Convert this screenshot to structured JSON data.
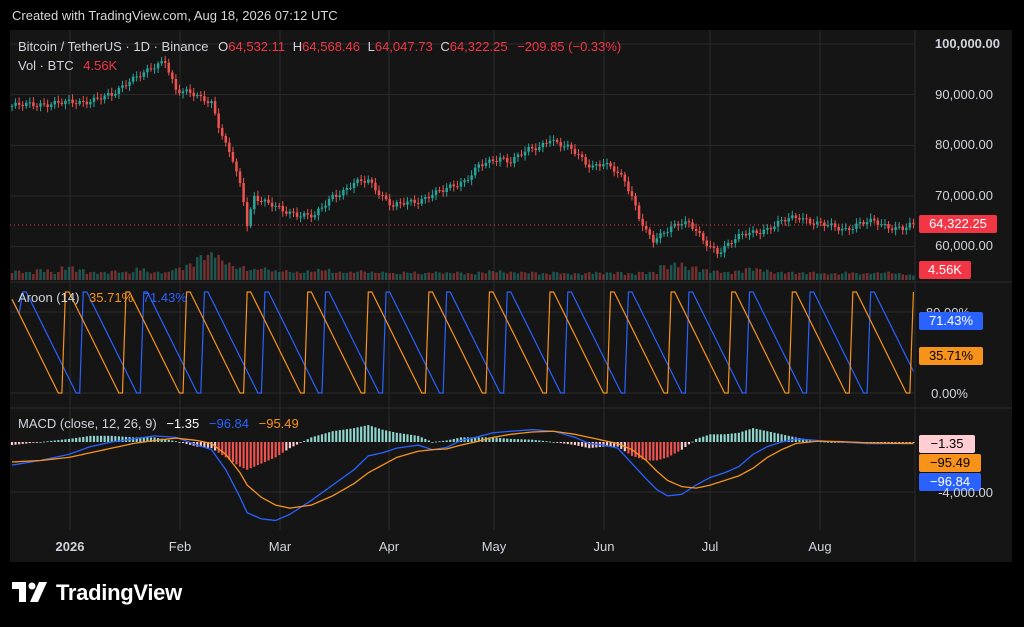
{
  "header": {
    "created_text": "Created with TradingView.com, Aug 18, 2026 07:12 UTC"
  },
  "footer": {
    "brand": "TradingView"
  },
  "colors": {
    "up": "#26a69a",
    "down": "#ef5350",
    "aroon_up": "#2962ff",
    "aroon_down": "#f7931a",
    "macd": "#2962ff",
    "signal": "#f7931a",
    "price_label_bg": "#f23645",
    "grid": "#2a2a2a",
    "text": "#d1d4dc"
  },
  "legend": {
    "symbol": "Bitcoin / TetherUS · 1D · Binance",
    "o_label": "O",
    "o": "64,532.11",
    "h_label": "H",
    "h": "64,568.46",
    "l_label": "L",
    "l": "64,047.73",
    "c_label": "C",
    "c": "64,322.25",
    "change": "−209.85 (−0.33%)",
    "vol_label": "Vol · BTC",
    "vol": "4.56K"
  },
  "aroon_legend": {
    "name": "Aroon (14)",
    "down": "35.71%",
    "up": "71.43%"
  },
  "macd_legend": {
    "name": "MACD (close, 12, 26, 9)",
    "hist": "−1.35",
    "macd": "−96.84",
    "signal": "−95.49"
  },
  "chart_data": [
    {
      "type": "candlestick",
      "title": "Bitcoin / TetherUS · 1D · Binance",
      "x_ticks": [
        "2026",
        "Feb",
        "Mar",
        "Apr",
        "May",
        "Jun",
        "Jul",
        "Aug"
      ],
      "y_ticks": [
        "100,000.00",
        "90,000.00",
        "80,000.00",
        "70,000.00",
        "60,000.00"
      ],
      "ylim": [
        55000,
        100000
      ],
      "last_price_label": "64,322.25",
      "volume_label": "4.56K",
      "close_path": [
        [
          0,
          87800
        ],
        [
          10,
          88200
        ],
        [
          20,
          88600
        ],
        [
          28,
          89800
        ],
        [
          33,
          93000
        ],
        [
          38,
          94500
        ],
        [
          43,
          96800
        ],
        [
          46,
          91000
        ],
        [
          50,
          90200
        ],
        [
          53,
          89300
        ],
        [
          56,
          88600
        ],
        [
          58,
          84000
        ],
        [
          60,
          80000
        ],
        [
          62,
          77000
        ],
        [
          64,
          72000
        ],
        [
          65,
          69000
        ],
        [
          66,
          64500
        ],
        [
          68,
          70000
        ],
        [
          72,
          68500
        ],
        [
          76,
          67000
        ],
        [
          80,
          66500
        ],
        [
          85,
          66000
        ],
        [
          90,
          70000
        ],
        [
          93,
          71000
        ],
        [
          96,
          72500
        ],
        [
          100,
          73000
        ],
        [
          104,
          70000
        ],
        [
          107,
          68000
        ],
        [
          110,
          68500
        ],
        [
          114,
          69000
        ],
        [
          118,
          70500
        ],
        [
          121,
          71000
        ],
        [
          124,
          72000
        ],
        [
          127,
          73000
        ],
        [
          129,
          74500
        ],
        [
          131,
          76000
        ],
        [
          134,
          76500
        ],
        [
          137,
          77500
        ],
        [
          140,
          77000
        ],
        [
          142,
          78000
        ],
        [
          145,
          79000
        ],
        [
          148,
          79500
        ],
        [
          151,
          81500
        ],
        [
          153,
          80500
        ],
        [
          156,
          79500
        ],
        [
          159,
          78000
        ],
        [
          161,
          76500
        ],
        [
          163,
          76000
        ],
        [
          166,
          76500
        ],
        [
          169,
          75000
        ],
        [
          172,
          73000
        ],
        [
          174,
          70000
        ],
        [
          176,
          66000
        ],
        [
          178,
          63000
        ],
        [
          180,
          61000
        ],
        [
          182,
          62000
        ],
        [
          185,
          64000
        ],
        [
          188,
          65000
        ],
        [
          190,
          64500
        ],
        [
          192,
          63000
        ],
        [
          194,
          61000
        ],
        [
          196,
          60000
        ],
        [
          198,
          59000
        ],
        [
          200,
          60000
        ],
        [
          203,
          61500
        ],
        [
          206,
          62500
        ],
        [
          209,
          63000
        ],
        [
          212,
          63500
        ],
        [
          215,
          64500
        ],
        [
          218,
          65500
        ],
        [
          221,
          66000
        ],
        [
          224,
          65000
        ],
        [
          226,
          64500
        ],
        [
          230,
          64000
        ],
        [
          234,
          63500
        ],
        [
          238,
          64500
        ],
        [
          242,
          65000
        ],
        [
          246,
          64000
        ],
        [
          250,
          63500
        ],
        [
          253,
          64322
        ]
      ],
      "volume_heights": [
        0.35,
        0.3,
        0.4,
        0.3,
        0.5,
        0.4,
        0.3,
        0.3,
        0.35,
        0.3,
        0.45,
        0.3,
        0.3,
        0.45,
        0.6,
        0.9,
        1.0,
        0.7,
        0.5,
        0.4,
        0.45,
        0.35,
        0.35,
        0.3,
        0.35,
        0.4,
        0.3,
        0.3,
        0.35,
        0.3,
        0.3,
        0.25,
        0.3,
        0.25,
        0.3,
        0.28,
        0.3,
        0.25,
        0.3,
        0.35,
        0.3,
        0.3,
        0.3,
        0.25,
        0.3,
        0.25,
        0.25,
        0.3,
        0.28,
        0.3,
        0.25,
        0.3,
        0.3,
        0.55,
        0.65,
        0.5,
        0.4,
        0.35,
        0.3,
        0.35,
        0.45,
        0.4,
        0.3,
        0.3,
        0.28,
        0.3,
        0.25,
        0.25,
        0.3,
        0.25,
        0.28,
        0.3,
        0.25,
        0.2
      ]
    },
    {
      "type": "line",
      "title": "Aroon (14)",
      "y_ticks": [
        "80.00%",
        "0.00%"
      ],
      "ylim": [
        0,
        100
      ],
      "series": [
        {
          "name": "up",
          "color": "#2962ff",
          "last_label": "71.43%"
        },
        {
          "name": "down",
          "color": "#f7931a",
          "last_label": "35.71%"
        }
      ]
    },
    {
      "type": "line",
      "title": "MACD (close, 12, 26, 9)",
      "y_ticks": [
        "-4,000.00"
      ],
      "ylim": [
        -6000,
        1500
      ],
      "last_labels": {
        "hist": "−1.35",
        "signal": "−95.49",
        "macd": "−96.84"
      },
      "macd": [
        [
          0,
          -1500
        ],
        [
          8,
          -1200
        ],
        [
          16,
          -800
        ],
        [
          22,
          -300
        ],
        [
          28,
          0
        ],
        [
          34,
          200
        ],
        [
          40,
          400
        ],
        [
          46,
          300
        ],
        [
          52,
          -200
        ],
        [
          56,
          -500
        ],
        [
          60,
          -1800
        ],
        [
          64,
          -3600
        ],
        [
          66,
          -4600
        ],
        [
          70,
          -5000
        ],
        [
          74,
          -5100
        ],
        [
          78,
          -4700
        ],
        [
          84,
          -3800
        ],
        [
          90,
          -2800
        ],
        [
          96,
          -1800
        ],
        [
          100,
          -900
        ],
        [
          104,
          -700
        ],
        [
          108,
          -400
        ],
        [
          114,
          -200
        ],
        [
          118,
          -500
        ],
        [
          122,
          -350
        ],
        [
          126,
          100
        ],
        [
          130,
          300
        ],
        [
          135,
          600
        ],
        [
          140,
          700
        ],
        [
          146,
          800
        ],
        [
          152,
          700
        ],
        [
          158,
          300
        ],
        [
          162,
          -100
        ],
        [
          166,
          -200
        ],
        [
          170,
          -400
        ],
        [
          174,
          -1400
        ],
        [
          178,
          -2400
        ],
        [
          181,
          -3100
        ],
        [
          184,
          -3500
        ],
        [
          188,
          -3400
        ],
        [
          192,
          -2800
        ],
        [
          196,
          -2300
        ],
        [
          200,
          -2000
        ],
        [
          204,
          -1600
        ],
        [
          208,
          -800
        ],
        [
          212,
          -300
        ],
        [
          216,
          0
        ],
        [
          220,
          200
        ],
        [
          226,
          100
        ],
        [
          232,
          0
        ],
        [
          240,
          -100
        ],
        [
          248,
          -100
        ],
        [
          253,
          -97
        ]
      ],
      "signal": [
        [
          0,
          -1300
        ],
        [
          8,
          -1200
        ],
        [
          16,
          -1000
        ],
        [
          22,
          -700
        ],
        [
          28,
          -400
        ],
        [
          34,
          -100
        ],
        [
          40,
          100
        ],
        [
          46,
          250
        ],
        [
          52,
          100
        ],
        [
          56,
          -100
        ],
        [
          60,
          -800
        ],
        [
          64,
          -2000
        ],
        [
          66,
          -2800
        ],
        [
          70,
          -3600
        ],
        [
          74,
          -4100
        ],
        [
          78,
          -4300
        ],
        [
          84,
          -4100
        ],
        [
          90,
          -3500
        ],
        [
          96,
          -2700
        ],
        [
          100,
          -2000
        ],
        [
          104,
          -1500
        ],
        [
          108,
          -1000
        ],
        [
          114,
          -600
        ],
        [
          118,
          -500
        ],
        [
          122,
          -450
        ],
        [
          126,
          -200
        ],
        [
          130,
          0
        ],
        [
          135,
          300
        ],
        [
          140,
          500
        ],
        [
          146,
          650
        ],
        [
          152,
          700
        ],
        [
          158,
          500
        ],
        [
          162,
          300
        ],
        [
          166,
          100
        ],
        [
          170,
          -100
        ],
        [
          174,
          -500
        ],
        [
          178,
          -1200
        ],
        [
          181,
          -1900
        ],
        [
          184,
          -2500
        ],
        [
          188,
          -2900
        ],
        [
          192,
          -3000
        ],
        [
          196,
          -2800
        ],
        [
          200,
          -2500
        ],
        [
          204,
          -2200
        ],
        [
          208,
          -1700
        ],
        [
          212,
          -1000
        ],
        [
          216,
          -500
        ],
        [
          220,
          -100
        ],
        [
          226,
          50
        ],
        [
          232,
          30
        ],
        [
          240,
          -50
        ],
        [
          248,
          -90
        ],
        [
          253,
          -95
        ]
      ]
    }
  ]
}
